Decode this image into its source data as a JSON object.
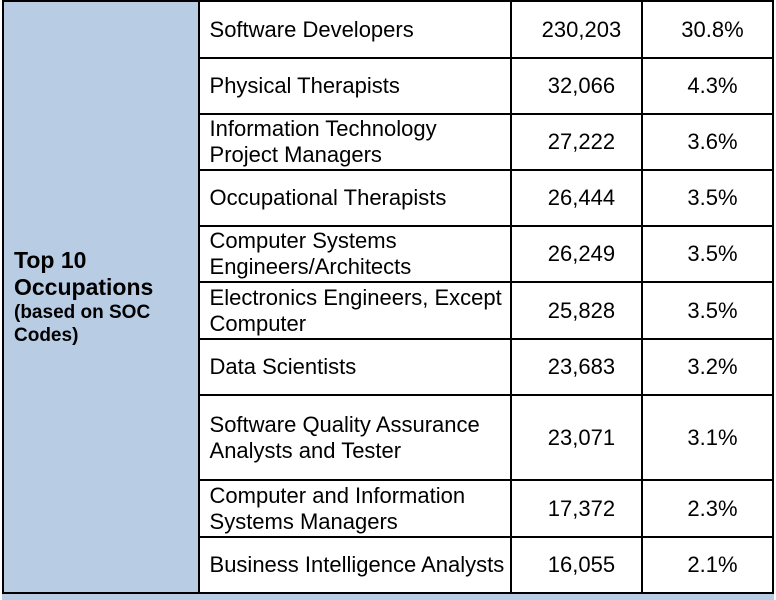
{
  "header": {
    "title_line1": "Top 10",
    "title_line2": "Occupations",
    "sub_line1": "(based on SOC",
    "sub_line2": "Codes)"
  },
  "rows": [
    {
      "occupation": "Software Developers",
      "count": "230,203",
      "percent": "30.8%"
    },
    {
      "occupation": "Physical Therapists",
      "count": "32,066",
      "percent": "4.3%"
    },
    {
      "occupation": "Information Technology Project Managers",
      "count": "27,222",
      "percent": "3.6%"
    },
    {
      "occupation": "Occupational Therapists",
      "count": "26,444",
      "percent": "3.5%"
    },
    {
      "occupation": "Computer Systems Engineers/Architects",
      "count": "26,249",
      "percent": "3.5%"
    },
    {
      "occupation": "Electronics Engineers, Except Computer",
      "count": "25,828",
      "percent": "3.5%"
    },
    {
      "occupation": "Data Scientists",
      "count": "23,683",
      "percent": "3.2%"
    },
    {
      "occupation": "Software Quality Assurance Analysts and Tester",
      "count": "23,071",
      "percent": "3.1%"
    },
    {
      "occupation": "Computer and Information Systems Managers",
      "count": "17,372",
      "percent": "2.3%"
    },
    {
      "occupation": "Business Intelligence Analysts",
      "count": "16,055",
      "percent": "2.1%"
    }
  ],
  "colors": {
    "header_bg": "#b8cce4",
    "border": "#000000"
  }
}
